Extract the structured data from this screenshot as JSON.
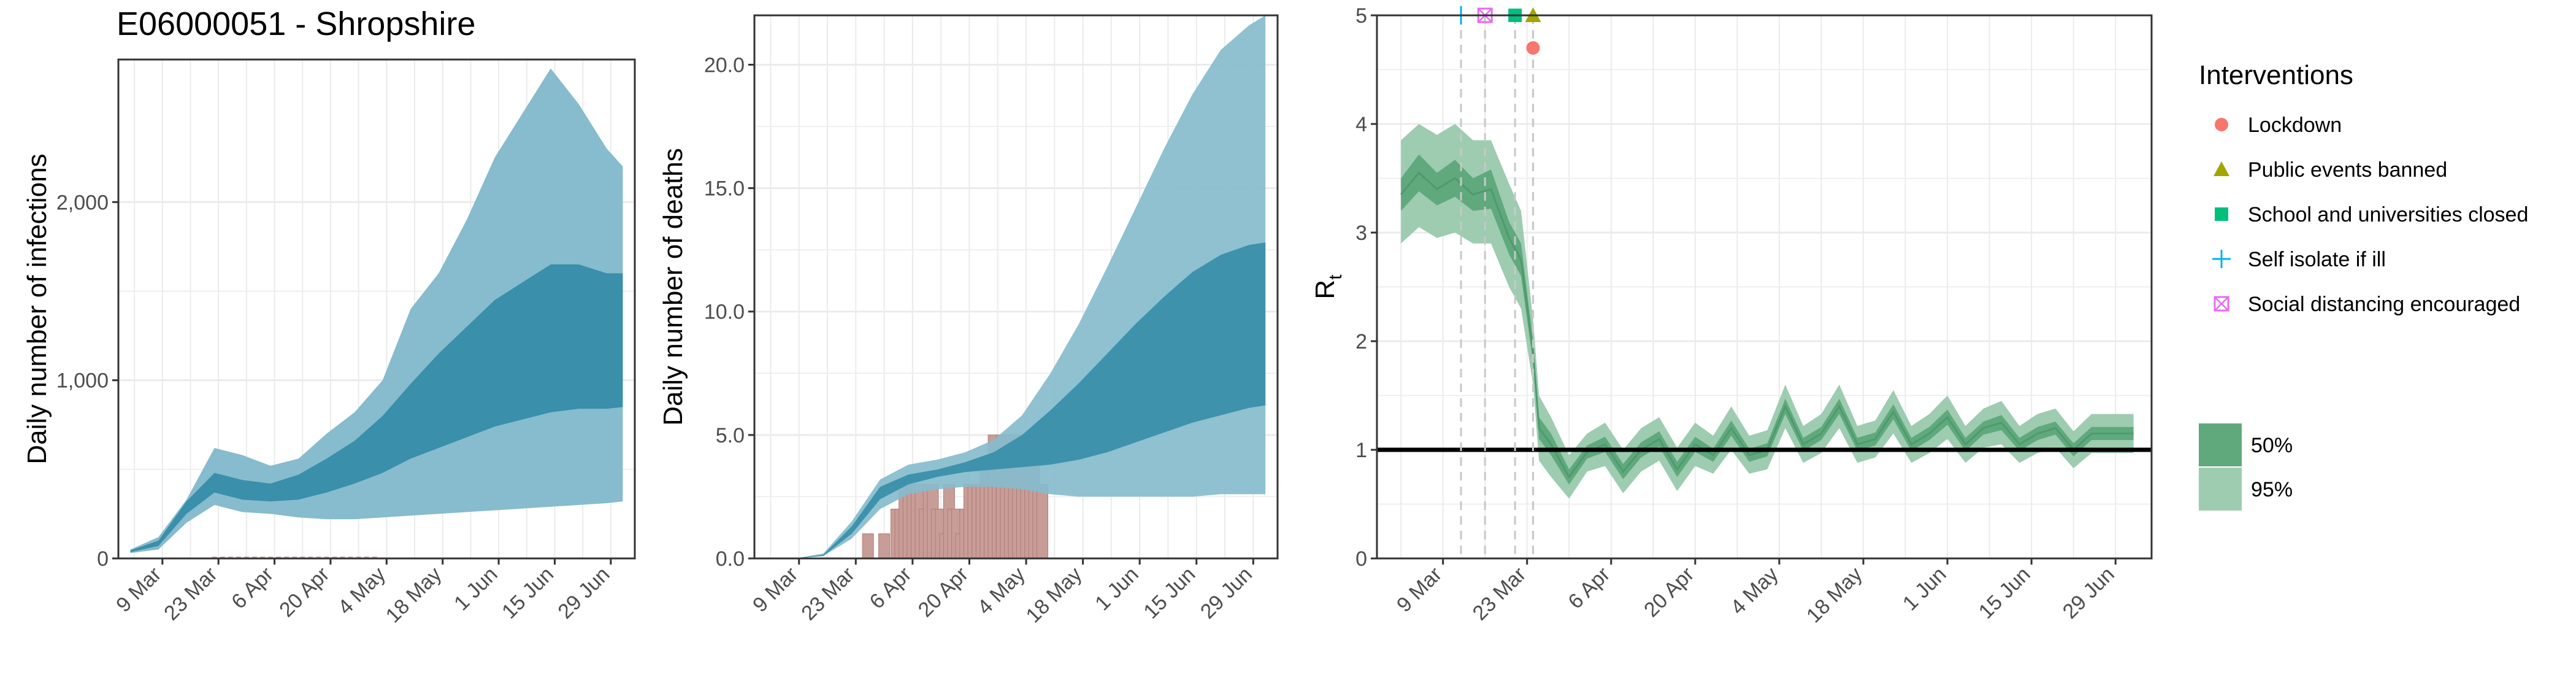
{
  "title": "E06000051 - Shropshire",
  "x_ticks": [
    "9 Mar",
    "23 Mar",
    "6 Apr",
    "20 Apr",
    "4 May",
    "18 May",
    "1 Jun",
    "15 Jun",
    "29 Jun"
  ],
  "chart_data": [
    {
      "type": "area",
      "title": "E06000051 - Shropshire",
      "xlabel": "",
      "ylabel": "Daily number of infections",
      "xlim": [
        "2020-02-27",
        "2020-07-05"
      ],
      "ylim": [
        0,
        2800
      ],
      "y_ticks": [
        0,
        1000,
        2000
      ],
      "y_tick_labels": [
        "0",
        "1,000",
        "2,000"
      ],
      "grid": true,
      "bands": {
        "x_weeks": [
          "2020-03-01",
          "2020-03-08",
          "2020-03-15",
          "2020-03-22",
          "2020-03-29",
          "2020-04-05",
          "2020-04-12",
          "2020-04-19",
          "2020-04-26",
          "2020-05-03",
          "2020-05-10",
          "2020-05-17",
          "2020-05-24",
          "2020-05-31",
          "2020-06-07",
          "2020-06-14",
          "2020-06-21",
          "2020-06-28",
          "2020-07-02"
        ],
        "ci95_low": [
          30,
          50,
          200,
          300,
          260,
          250,
          230,
          220,
          220,
          230,
          240,
          250,
          260,
          270,
          280,
          290,
          300,
          310,
          320
        ],
        "ci95_high": [
          50,
          120,
          330,
          620,
          580,
          520,
          560,
          700,
          820,
          1000,
          1400,
          1600,
          1900,
          2250,
          2500,
          2750,
          2550,
          2300,
          2200
        ],
        "ci50_low": [
          35,
          70,
          250,
          370,
          330,
          320,
          330,
          370,
          420,
          480,
          560,
          620,
          680,
          740,
          780,
          820,
          840,
          840,
          850
        ],
        "ci50_high": [
          45,
          100,
          320,
          480,
          440,
          420,
          470,
          560,
          660,
          800,
          980,
          1150,
          1300,
          1450,
          1550,
          1650,
          1650,
          1600,
          1600
        ]
      },
      "observed_cases": {
        "note_values_near_zero": true,
        "y_max": 20
      }
    },
    {
      "type": "area",
      "xlabel": "",
      "ylabel": "Daily number of deaths",
      "xlim": [
        "2020-02-27",
        "2020-07-05"
      ],
      "ylim": [
        0,
        22
      ],
      "y_ticks": [
        0,
        5,
        10,
        15,
        20
      ],
      "y_tick_labels": [
        "0.0",
        "5.0",
        "10.0",
        "15.0",
        "20.0"
      ],
      "grid": true,
      "bands": {
        "x_weeks": [
          "2020-03-01",
          "2020-03-08",
          "2020-03-15",
          "2020-03-22",
          "2020-03-29",
          "2020-04-05",
          "2020-04-12",
          "2020-04-19",
          "2020-04-26",
          "2020-05-03",
          "2020-05-10",
          "2020-05-17",
          "2020-05-24",
          "2020-05-31",
          "2020-06-07",
          "2020-06-14",
          "2020-06-21",
          "2020-06-28",
          "2020-07-02"
        ],
        "ci95_low": [
          0,
          0,
          0.1,
          0.8,
          2.0,
          2.6,
          2.8,
          2.9,
          2.9,
          2.8,
          2.6,
          2.5,
          2.5,
          2.5,
          2.5,
          2.5,
          2.6,
          2.6,
          2.6
        ],
        "ci95_high": [
          0,
          0,
          0.2,
          1.5,
          3.2,
          3.8,
          4.0,
          4.3,
          4.8,
          5.8,
          7.5,
          9.5,
          11.8,
          14.2,
          16.6,
          18.8,
          20.6,
          21.6,
          22.0
        ],
        "ci50_low": [
          0,
          0,
          0.1,
          1.0,
          2.4,
          3.0,
          3.3,
          3.5,
          3.6,
          3.7,
          3.8,
          4.0,
          4.3,
          4.7,
          5.1,
          5.5,
          5.8,
          6.1,
          6.2
        ],
        "ci50_high": [
          0,
          0,
          0.15,
          1.3,
          2.9,
          3.4,
          3.6,
          3.9,
          4.3,
          5.0,
          6.0,
          7.1,
          8.3,
          9.5,
          10.6,
          11.6,
          12.3,
          12.7,
          12.8
        ]
      },
      "observed_deaths": {
        "dates": [
          "2020-03-26",
          "2020-03-30",
          "2020-04-02",
          "2020-04-03",
          "2020-04-04",
          "2020-04-05",
          "2020-04-06",
          "2020-04-07",
          "2020-04-08",
          "2020-04-09",
          "2020-04-10",
          "2020-04-11",
          "2020-04-12",
          "2020-04-13",
          "2020-04-14",
          "2020-04-15",
          "2020-04-16",
          "2020-04-17",
          "2020-04-18",
          "2020-04-19",
          "2020-04-20",
          "2020-04-21",
          "2020-04-22",
          "2020-04-23",
          "2020-04-24",
          "2020-04-25",
          "2020-04-26",
          "2020-04-27",
          "2020-04-28",
          "2020-04-29",
          "2020-04-30",
          "2020-05-01",
          "2020-05-02",
          "2020-05-03",
          "2020-05-04",
          "2020-05-05",
          "2020-05-06",
          "2020-05-07",
          "2020-05-08"
        ],
        "values": [
          1,
          1,
          2,
          2,
          3,
          3,
          3,
          3,
          3,
          2,
          3,
          3,
          2,
          2,
          1,
          3,
          2,
          2,
          1,
          2,
          3,
          3,
          3,
          3,
          4,
          3,
          5,
          4,
          5,
          3,
          4,
          5,
          5,
          3,
          5,
          3,
          5,
          3,
          3
        ]
      }
    },
    {
      "type": "line",
      "xlabel": "",
      "ylabel": "R",
      "ylabel_sub": "t",
      "xlim": [
        "2020-02-27",
        "2020-07-05"
      ],
      "ylim": [
        0,
        5
      ],
      "y_ticks": [
        0,
        1,
        2,
        3,
        4,
        5
      ],
      "y_tick_labels": [
        "0",
        "1",
        "2",
        "3",
        "4",
        "5"
      ],
      "grid": true,
      "reference_line": 1,
      "rt": {
        "x": [
          "2020-03-02",
          "2020-03-05",
          "2020-03-08",
          "2020-03-11",
          "2020-03-14",
          "2020-03-17",
          "2020-03-20",
          "2020-03-22",
          "2020-03-24",
          "2020-03-25",
          "2020-03-27",
          "2020-03-30",
          "2020-04-02",
          "2020-04-05",
          "2020-04-08",
          "2020-04-11",
          "2020-04-14",
          "2020-04-17",
          "2020-04-20",
          "2020-04-23",
          "2020-04-26",
          "2020-04-29",
          "2020-05-02",
          "2020-05-05",
          "2020-05-08",
          "2020-05-11",
          "2020-05-14",
          "2020-05-17",
          "2020-05-20",
          "2020-05-23",
          "2020-05-26",
          "2020-05-29",
          "2020-06-01",
          "2020-06-04",
          "2020-06-07",
          "2020-06-10",
          "2020-06-13",
          "2020-06-16",
          "2020-06-19",
          "2020-06-22",
          "2020-06-25",
          "2020-06-28",
          "2020-07-02"
        ],
        "median": [
          3.35,
          3.55,
          3.4,
          3.5,
          3.35,
          3.4,
          2.95,
          2.75,
          1.9,
          1.2,
          1.05,
          0.75,
          0.98,
          1.05,
          0.8,
          1.0,
          1.1,
          0.82,
          1.05,
          0.95,
          1.2,
          0.95,
          1.0,
          1.4,
          1.05,
          1.15,
          1.4,
          1.05,
          1.1,
          1.35,
          1.05,
          1.15,
          1.3,
          1.05,
          1.2,
          1.25,
          1.05,
          1.15,
          1.2,
          1.0,
          1.15,
          1.15,
          1.15
        ],
        "ci95_low": [
          2.9,
          3.05,
          2.95,
          3.0,
          2.9,
          2.9,
          2.5,
          2.3,
          1.6,
          0.9,
          0.75,
          0.55,
          0.8,
          0.85,
          0.6,
          0.8,
          0.9,
          0.62,
          0.85,
          0.78,
          1.0,
          0.78,
          0.82,
          1.2,
          0.88,
          0.97,
          1.2,
          0.88,
          0.93,
          1.15,
          0.88,
          0.97,
          1.1,
          0.88,
          1.02,
          1.05,
          0.88,
          0.97,
          1.02,
          0.83,
          0.97,
          0.97,
          0.97
        ],
        "ci95_high": [
          3.85,
          4.0,
          3.9,
          4.0,
          3.85,
          3.85,
          3.45,
          3.2,
          2.2,
          1.5,
          1.3,
          0.95,
          1.15,
          1.25,
          1.0,
          1.2,
          1.3,
          1.02,
          1.25,
          1.13,
          1.4,
          1.13,
          1.18,
          1.6,
          1.22,
          1.33,
          1.6,
          1.22,
          1.27,
          1.55,
          1.22,
          1.33,
          1.5,
          1.22,
          1.38,
          1.45,
          1.22,
          1.33,
          1.38,
          1.17,
          1.33,
          1.33,
          1.33
        ],
        "ci50_low": [
          3.2,
          3.38,
          3.25,
          3.33,
          3.2,
          3.22,
          2.8,
          2.6,
          1.8,
          1.1,
          0.95,
          0.68,
          0.92,
          0.98,
          0.73,
          0.93,
          1.03,
          0.75,
          0.98,
          0.89,
          1.13,
          0.89,
          0.94,
          1.33,
          0.99,
          1.09,
          1.33,
          0.99,
          1.04,
          1.28,
          0.99,
          1.09,
          1.23,
          0.99,
          1.14,
          1.18,
          0.99,
          1.09,
          1.14,
          0.94,
          1.09,
          1.09,
          1.09
        ],
        "ci50_high": [
          3.5,
          3.72,
          3.55,
          3.67,
          3.5,
          3.58,
          3.1,
          2.9,
          2.0,
          1.3,
          1.15,
          0.82,
          1.04,
          1.12,
          0.87,
          1.07,
          1.17,
          0.89,
          1.12,
          1.01,
          1.27,
          1.01,
          1.06,
          1.47,
          1.11,
          1.21,
          1.47,
          1.11,
          1.16,
          1.42,
          1.11,
          1.21,
          1.37,
          1.11,
          1.26,
          1.32,
          1.11,
          1.21,
          1.26,
          1.06,
          1.21,
          1.21,
          1.21
        ]
      },
      "interventions": [
        {
          "name": "Lockdown",
          "date": "2020-03-24",
          "y": 4.7,
          "color": "#F8766D",
          "shape": "circle"
        },
        {
          "name": "Public events banned",
          "date": "2020-03-24",
          "y": 5.0,
          "color": "#A3A500",
          "shape": "triangle"
        },
        {
          "name": "School and universities closed",
          "date": "2020-03-21",
          "y": 5.0,
          "color": "#00BF7D",
          "shape": "square"
        },
        {
          "name": "Self isolate if ill",
          "date": "2020-03-12",
          "y": 5.0,
          "color": "#00B0F6",
          "shape": "plus"
        },
        {
          "name": "Social distancing encouraged",
          "date": "2020-03-16",
          "y": 5.0,
          "color": "#E76BF3",
          "shape": "boxed-x"
        }
      ]
    }
  ],
  "legend": {
    "interventions_title": "Interventions",
    "items": [
      "Lockdown",
      "Public events banned",
      "School and universities closed",
      "Self isolate if ill",
      "Social distancing encouraged"
    ],
    "ci_items": [
      "50%",
      "95%"
    ]
  },
  "colors": {
    "blue_95": "#86BCCD",
    "blue_50": "#3A8FAA",
    "green_95": "#9ECCB0",
    "green_50": "#5FA97D",
    "deaths_bar": "#C89D97",
    "grid": "#EBEBEB",
    "vline": "#C8C8C8"
  }
}
